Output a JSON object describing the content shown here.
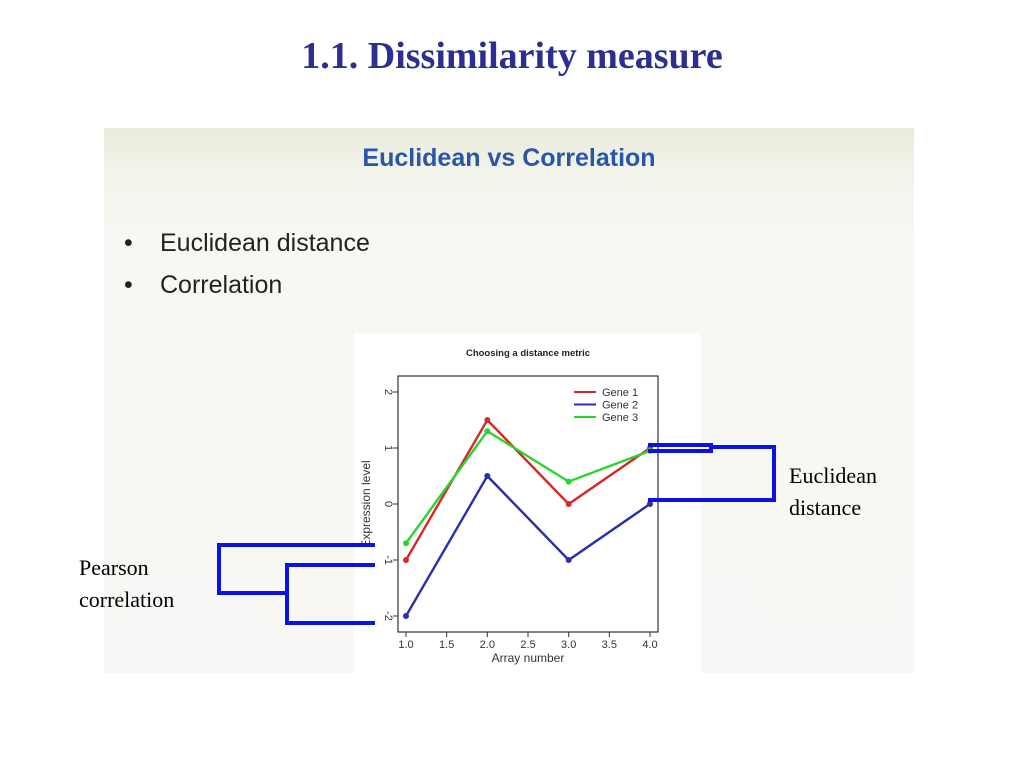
{
  "slide": {
    "title": "1.1. Dissimilarity measure"
  },
  "inner_slide": {
    "title": "Euclidean vs Correlation",
    "bullets": [
      "Euclidean distance",
      "Correlation"
    ],
    "bullet_symbol": "•"
  },
  "annotations": {
    "pearson": [
      "Pearson",
      "correlation"
    ],
    "euclidean": [
      "Euclidean",
      "distance"
    ],
    "bracket_color": "#0a12e6"
  },
  "chart_data": {
    "type": "line",
    "title": "Choosing a distance metric",
    "xlabel": "Array number",
    "ylabel": "Expression level",
    "x": [
      1.0,
      2.0,
      3.0,
      4.0
    ],
    "xlim": [
      1.0,
      4.0
    ],
    "ylim": [
      -2,
      2
    ],
    "xticks": [
      "1.0",
      "1.5",
      "2.0",
      "2.5",
      "3.0",
      "3.5",
      "4.0"
    ],
    "yticks": [
      "-2",
      "-1",
      "0",
      "1",
      "2"
    ],
    "legend_position": "top-right",
    "series": [
      {
        "name": "Gene 1",
        "color": "#d42a2a",
        "values": [
          -1.0,
          1.5,
          0.0,
          1.0
        ]
      },
      {
        "name": "Gene 2",
        "color": "#2b2fa8",
        "values": [
          -2.0,
          0.5,
          -1.0,
          0.0
        ]
      },
      {
        "name": "Gene 3",
        "color": "#2bd42b",
        "values": [
          -0.7,
          1.3,
          0.4,
          0.95
        ]
      }
    ]
  }
}
